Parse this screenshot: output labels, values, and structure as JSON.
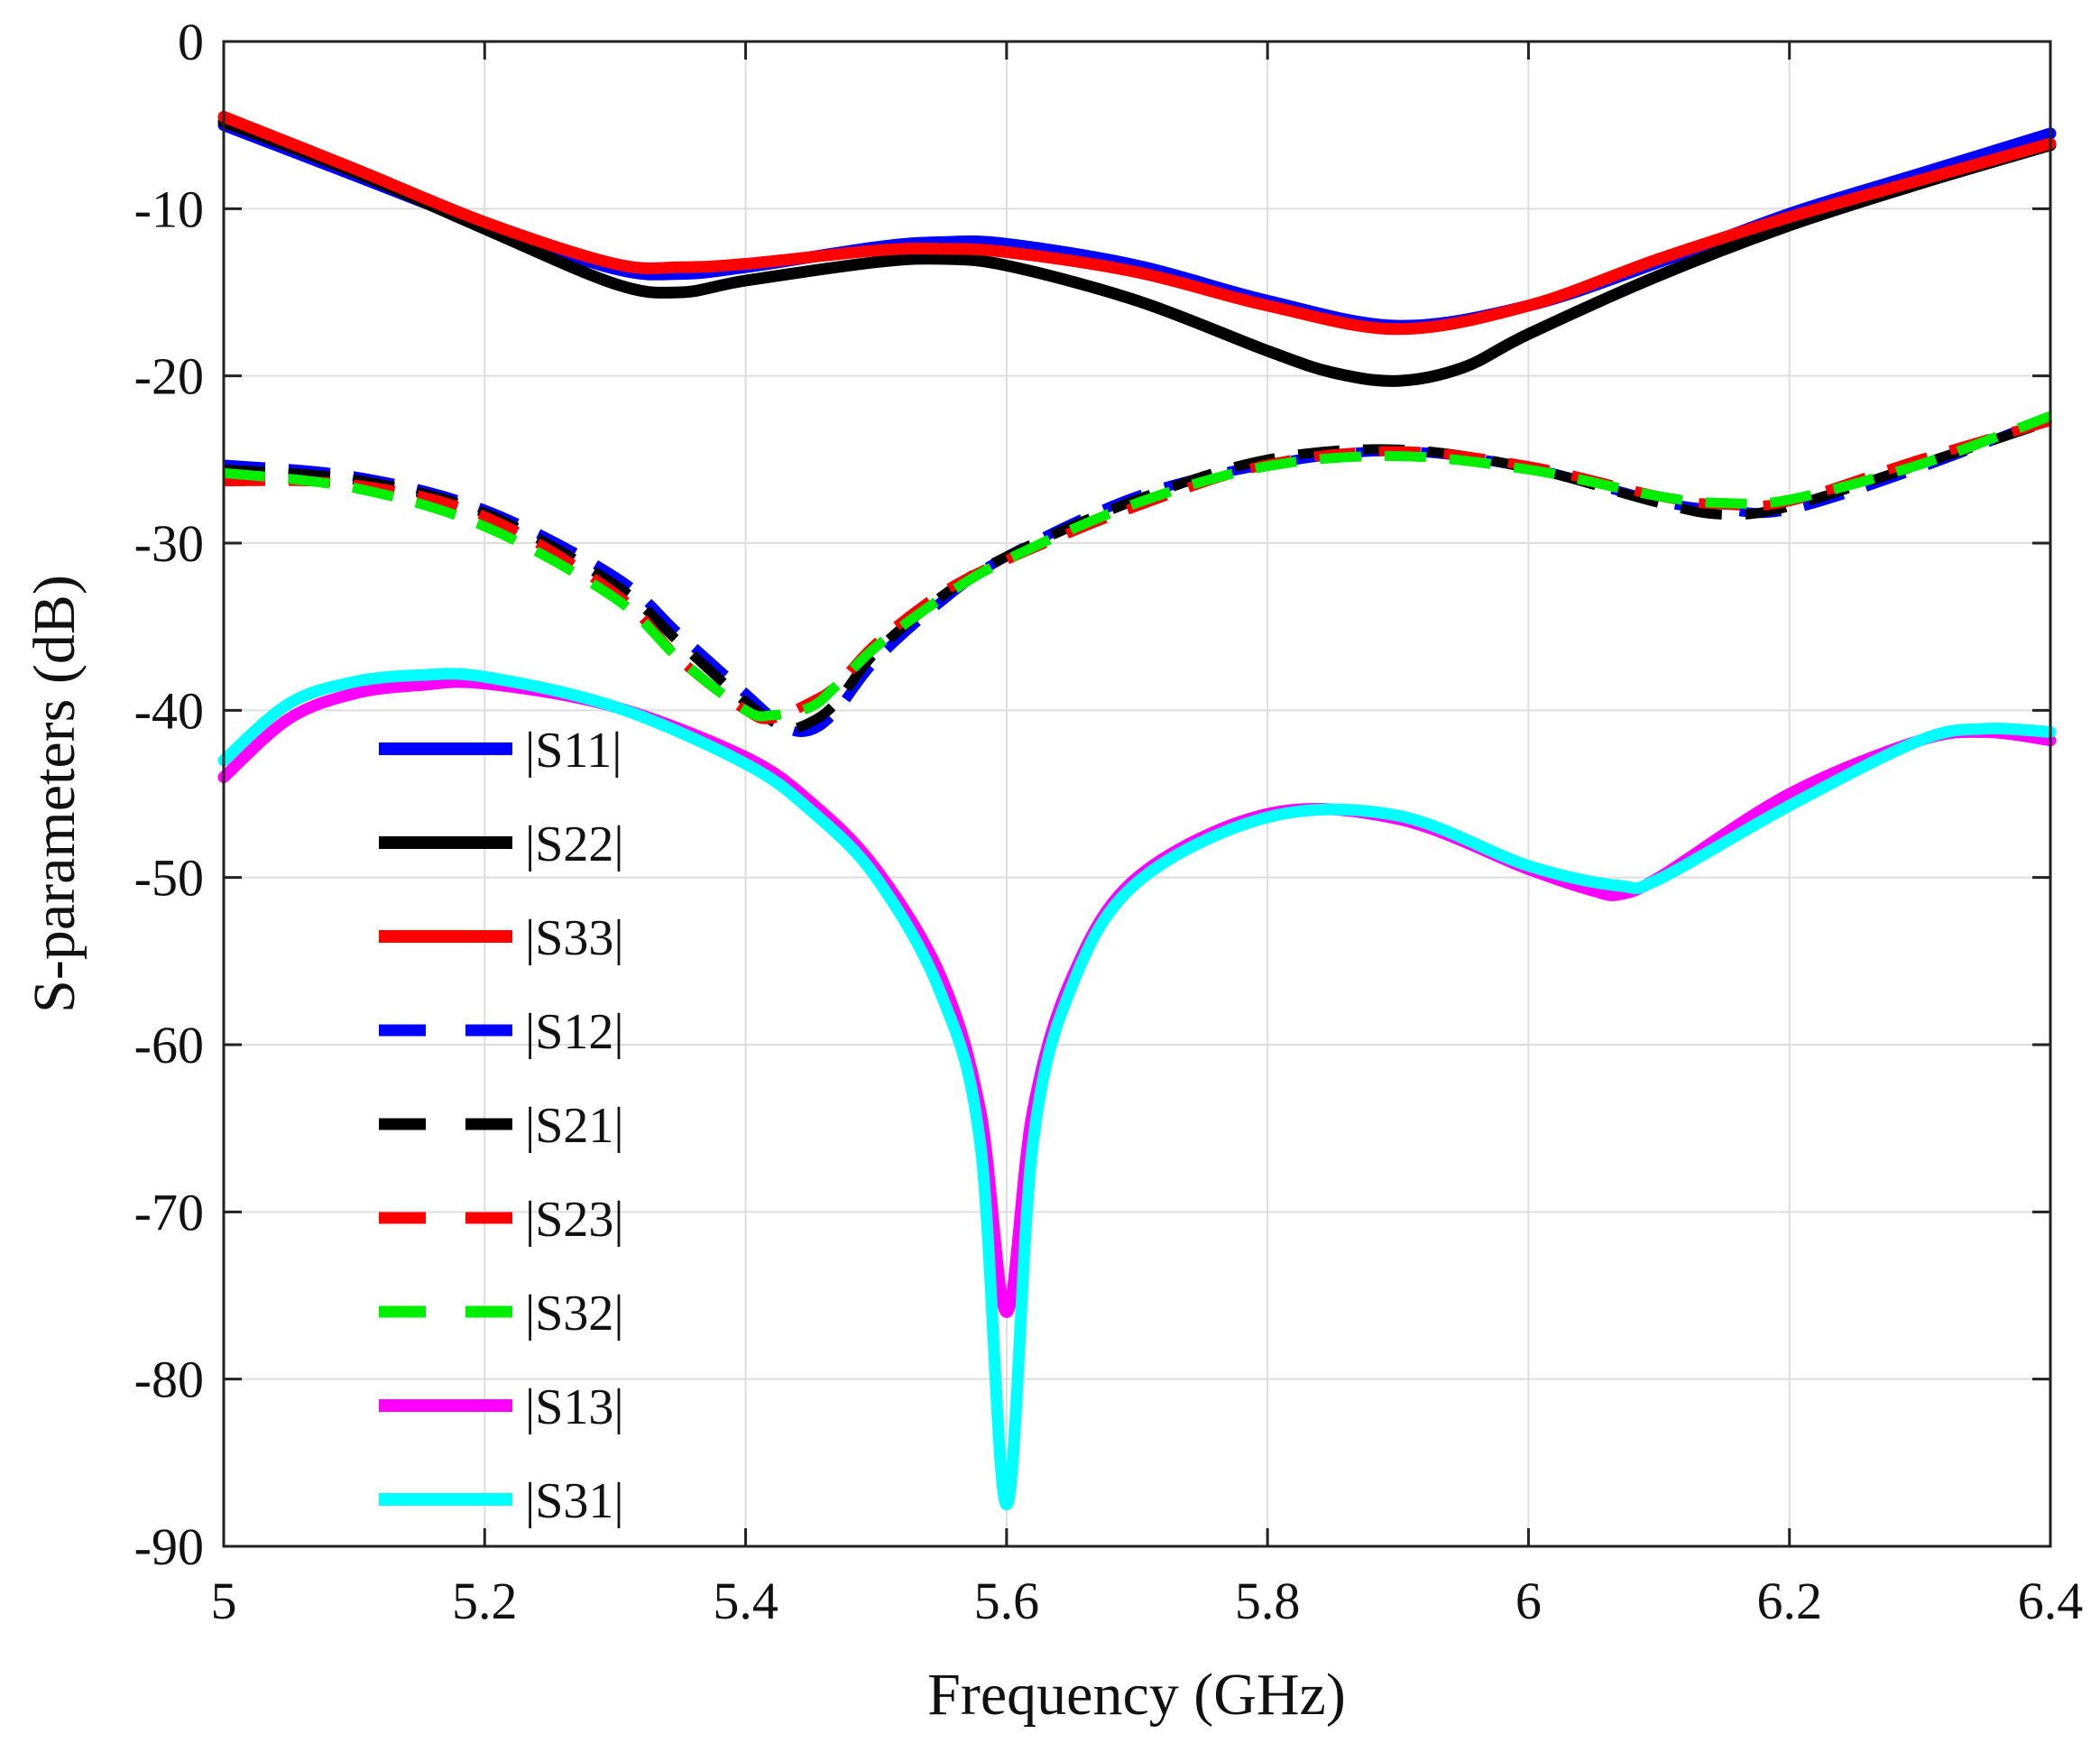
{
  "chart_data": {
    "type": "line",
    "title": "",
    "xlabel": "Frequency (GHz)",
    "ylabel": "S-parameters (dB)",
    "xlim": [
      5,
      6.4
    ],
    "ylim": [
      -90,
      0
    ],
    "xticks": [
      5,
      5.2,
      5.4,
      5.6,
      5.8,
      6,
      6.2,
      6.4
    ],
    "xtick_labels": [
      "5",
      "5.2",
      "5.4",
      "5.6",
      "5.8",
      "6",
      "6.2",
      "6.4"
    ],
    "yticks": [
      0,
      -10,
      -20,
      -30,
      -40,
      -50,
      -60,
      -70,
      -80,
      -90
    ],
    "ytick_labels": [
      "0",
      "-10",
      "-20",
      "-30",
      "-40",
      "-50",
      "-60",
      "-70",
      "-80",
      "-90"
    ],
    "grid": true,
    "legend_position": "left",
    "series": [
      {
        "name": "|S11|",
        "color": "#0000ff",
        "dash": "solid",
        "x": [
          5.0,
          5.1,
          5.2,
          5.3,
          5.35,
          5.4,
          5.5,
          5.55,
          5.6,
          5.7,
          5.8,
          5.9,
          6.0,
          6.1,
          6.2,
          6.3,
          6.4
        ],
        "y": [
          -5.0,
          -8.0,
          -11.0,
          -13.6,
          -13.9,
          -13.5,
          -12.3,
          -12.0,
          -12.1,
          -13.4,
          -15.5,
          -17.0,
          -15.8,
          -13.2,
          -10.3,
          -7.9,
          -5.5
        ]
      },
      {
        "name": "|S22|",
        "color": "#000000",
        "dash": "solid",
        "x": [
          5.0,
          5.1,
          5.2,
          5.3,
          5.35,
          5.4,
          5.5,
          5.55,
          5.6,
          5.7,
          5.8,
          5.85,
          5.9,
          5.95,
          6.0,
          6.1,
          6.2,
          6.3,
          6.4
        ],
        "y": [
          -4.8,
          -7.8,
          -11.2,
          -14.5,
          -15.0,
          -14.3,
          -13.2,
          -13.0,
          -13.4,
          -15.5,
          -18.5,
          -19.8,
          -20.3,
          -19.5,
          -17.5,
          -14.0,
          -11.0,
          -8.5,
          -6.2
        ]
      },
      {
        "name": "|S33|",
        "color": "#ff0000",
        "dash": "solid",
        "x": [
          5.0,
          5.1,
          5.2,
          5.3,
          5.35,
          5.4,
          5.5,
          5.55,
          5.6,
          5.7,
          5.8,
          5.9,
          6.0,
          6.1,
          6.2,
          6.3,
          6.4
        ],
        "y": [
          -4.5,
          -7.6,
          -10.8,
          -13.3,
          -13.5,
          -13.3,
          -12.5,
          -12.4,
          -12.6,
          -13.8,
          -15.8,
          -17.2,
          -15.8,
          -13.0,
          -10.5,
          -8.3,
          -6.1
        ]
      },
      {
        "name": "|S12|",
        "color": "#0000ff",
        "dash": "dashed",
        "x": [
          5.0,
          5.1,
          5.2,
          5.3,
          5.35,
          5.4,
          5.43,
          5.45,
          5.47,
          5.5,
          5.55,
          5.6,
          5.7,
          5.8,
          5.9,
          6.0,
          6.1,
          6.15,
          6.2,
          6.3,
          6.4
        ],
        "y": [
          -25.3,
          -26.0,
          -28.0,
          -32.0,
          -35.5,
          -39.0,
          -41.0,
          -41.2,
          -40.0,
          -37.0,
          -33.5,
          -30.8,
          -27.2,
          -25.3,
          -24.5,
          -25.5,
          -27.5,
          -28.0,
          -28.0,
          -25.5,
          -22.5
        ]
      },
      {
        "name": "|S21|",
        "color": "#000000",
        "dash": "dashed",
        "x": [
          5.0,
          5.1,
          5.2,
          5.3,
          5.35,
          5.4,
          5.43,
          5.45,
          5.47,
          5.5,
          5.55,
          5.6,
          5.7,
          5.8,
          5.9,
          6.0,
          6.1,
          6.15,
          6.2,
          6.3,
          6.4
        ],
        "y": [
          -25.6,
          -26.2,
          -28.2,
          -32.5,
          -36.0,
          -39.5,
          -41.0,
          -40.7,
          -39.5,
          -36.5,
          -33.2,
          -30.8,
          -27.4,
          -25.0,
          -24.4,
          -25.5,
          -27.6,
          -28.3,
          -27.8,
          -25.3,
          -22.7
        ]
      },
      {
        "name": "|S23|",
        "color": "#ff0000",
        "dash": "dashed",
        "x": [
          5.0,
          5.1,
          5.2,
          5.3,
          5.35,
          5.4,
          5.42,
          5.45,
          5.47,
          5.5,
          5.55,
          5.6,
          5.7,
          5.8,
          5.9,
          6.0,
          6.1,
          6.15,
          6.2,
          6.3,
          6.4
        ],
        "y": [
          -26.3,
          -26.5,
          -28.4,
          -33.0,
          -37.0,
          -40.0,
          -40.5,
          -39.5,
          -38.5,
          -36.0,
          -33.0,
          -31.0,
          -27.8,
          -25.3,
          -24.5,
          -25.4,
          -27.2,
          -27.7,
          -27.5,
          -25.0,
          -22.7
        ]
      },
      {
        "name": "|S32|",
        "color": "#00ee00",
        "dash": "dashed",
        "x": [
          5.0,
          5.1,
          5.2,
          5.3,
          5.35,
          5.4,
          5.42,
          5.45,
          5.47,
          5.5,
          5.55,
          5.6,
          5.7,
          5.8,
          5.9,
          6.0,
          6.1,
          6.15,
          6.2,
          6.3,
          6.4
        ],
        "y": [
          -25.8,
          -26.7,
          -29.0,
          -33.3,
          -37.0,
          -40.0,
          -40.3,
          -39.8,
          -38.5,
          -36.2,
          -33.3,
          -31.0,
          -27.6,
          -25.4,
          -24.8,
          -25.6,
          -27.2,
          -27.6,
          -27.4,
          -25.3,
          -22.4
        ]
      },
      {
        "name": "|S13|",
        "color": "#ff00ff",
        "dash": "solid",
        "x": [
          5.0,
          5.05,
          5.1,
          5.15,
          5.2,
          5.3,
          5.4,
          5.45,
          5.5,
          5.55,
          5.58,
          5.6,
          5.62,
          5.65,
          5.7,
          5.8,
          5.9,
          6.0,
          6.05,
          6.07,
          6.1,
          6.2,
          6.3,
          6.35,
          6.4
        ],
        "y": [
          -44.0,
          -40.5,
          -39.0,
          -38.5,
          -38.4,
          -39.8,
          -42.8,
          -45.5,
          -49.5,
          -56.0,
          -64.0,
          -76.0,
          -64.0,
          -56.0,
          -50.0,
          -46.2,
          -46.5,
          -49.5,
          -50.8,
          -51.0,
          -50.0,
          -45.0,
          -41.8,
          -41.3,
          -41.8
        ]
      },
      {
        "name": "|S31|",
        "color": "#00ffff",
        "dash": "solid",
        "x": [
          5.0,
          5.05,
          5.1,
          5.15,
          5.2,
          5.3,
          5.4,
          5.45,
          5.5,
          5.55,
          5.58,
          5.6,
          5.62,
          5.65,
          5.7,
          5.8,
          5.9,
          6.0,
          6.07,
          6.1,
          6.2,
          6.3,
          6.35,
          6.4
        ],
        "y": [
          -43.0,
          -39.6,
          -38.3,
          -37.9,
          -38.0,
          -39.8,
          -43.2,
          -46.0,
          -50.0,
          -57.0,
          -66.0,
          -87.5,
          -66.0,
          -56.5,
          -50.3,
          -46.4,
          -46.3,
          -49.3,
          -50.5,
          -50.1,
          -45.7,
          -41.8,
          -41.1,
          -41.3
        ]
      }
    ]
  }
}
